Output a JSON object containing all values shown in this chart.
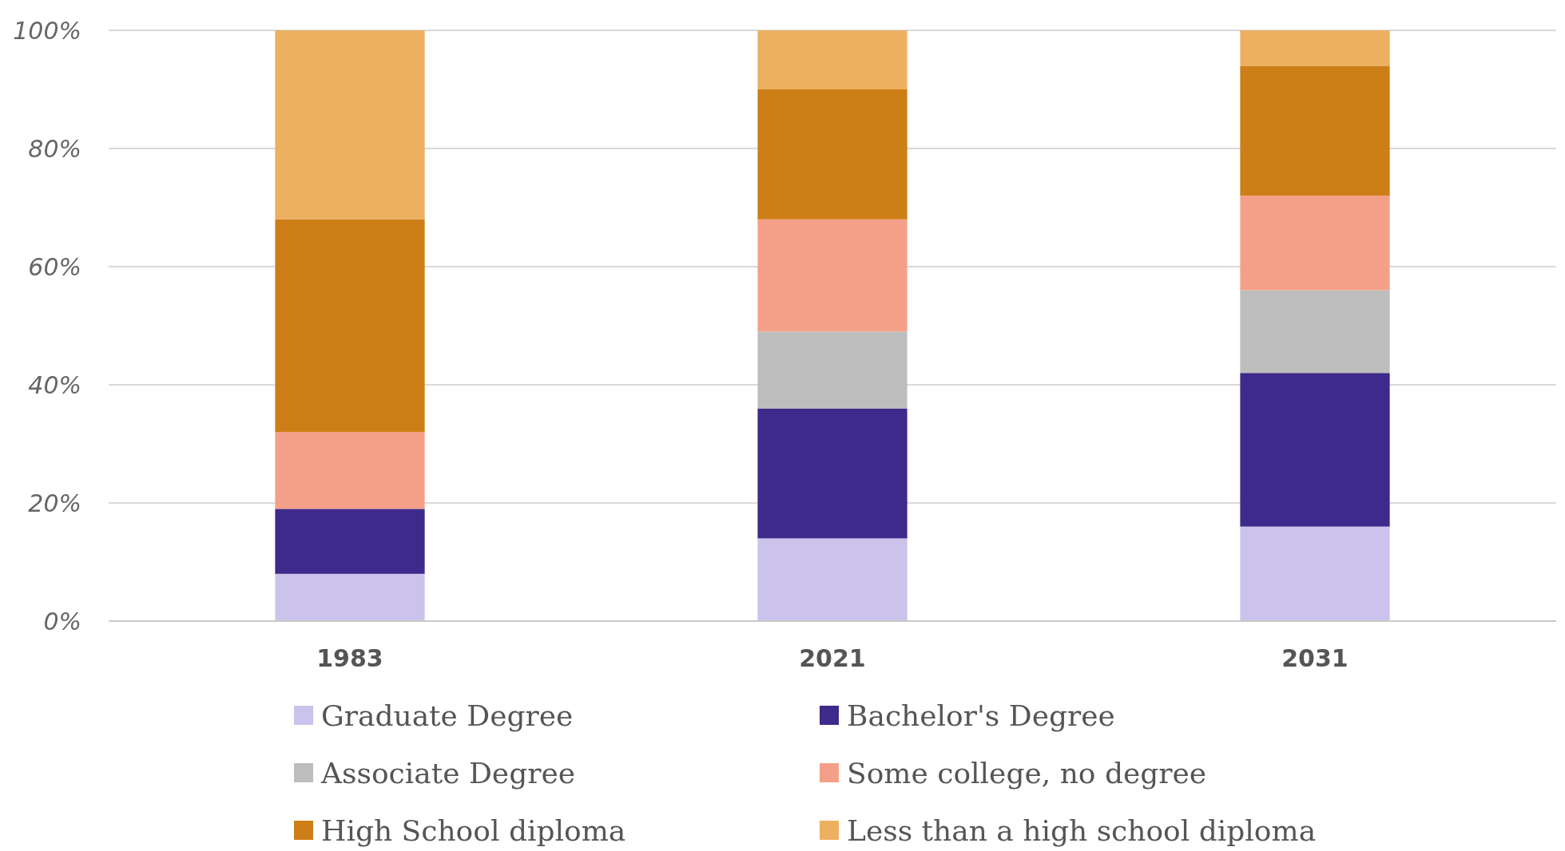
{
  "chart_data": {
    "type": "bar",
    "stacked": true,
    "categories": [
      "1983",
      "2021",
      "2031"
    ],
    "series": [
      {
        "name": "Graduate Degree",
        "color": "#cbc3eb",
        "values": [
          8,
          14,
          16
        ]
      },
      {
        "name": "Bachelor's Degree",
        "color": "#3e2a8a",
        "values": [
          11,
          22,
          26
        ]
      },
      {
        "name": "Associate Degree",
        "color": "#bdbdbd",
        "values": [
          0,
          13,
          14
        ]
      },
      {
        "name": "Some college, no degree",
        "color": "#f4a088",
        "values": [
          13,
          19,
          16
        ]
      },
      {
        "name": "High School diploma",
        "color": "#cd7e16",
        "values": [
          36,
          22,
          22
        ]
      },
      {
        "name": "Less than a high school diploma",
        "color": "#ecb060",
        "values": [
          32,
          10,
          6
        ]
      }
    ],
    "ylim": [
      0,
      100
    ],
    "yticks": [
      {
        "value": 0,
        "label": "0%"
      },
      {
        "value": 20,
        "label": "20%"
      },
      {
        "value": 40,
        "label": "40%"
      },
      {
        "value": 60,
        "label": "60%"
      },
      {
        "value": 80,
        "label": "80%"
      },
      {
        "value": 100,
        "label": "100%"
      }
    ],
    "grid": "y",
    "legend": "bottom"
  }
}
